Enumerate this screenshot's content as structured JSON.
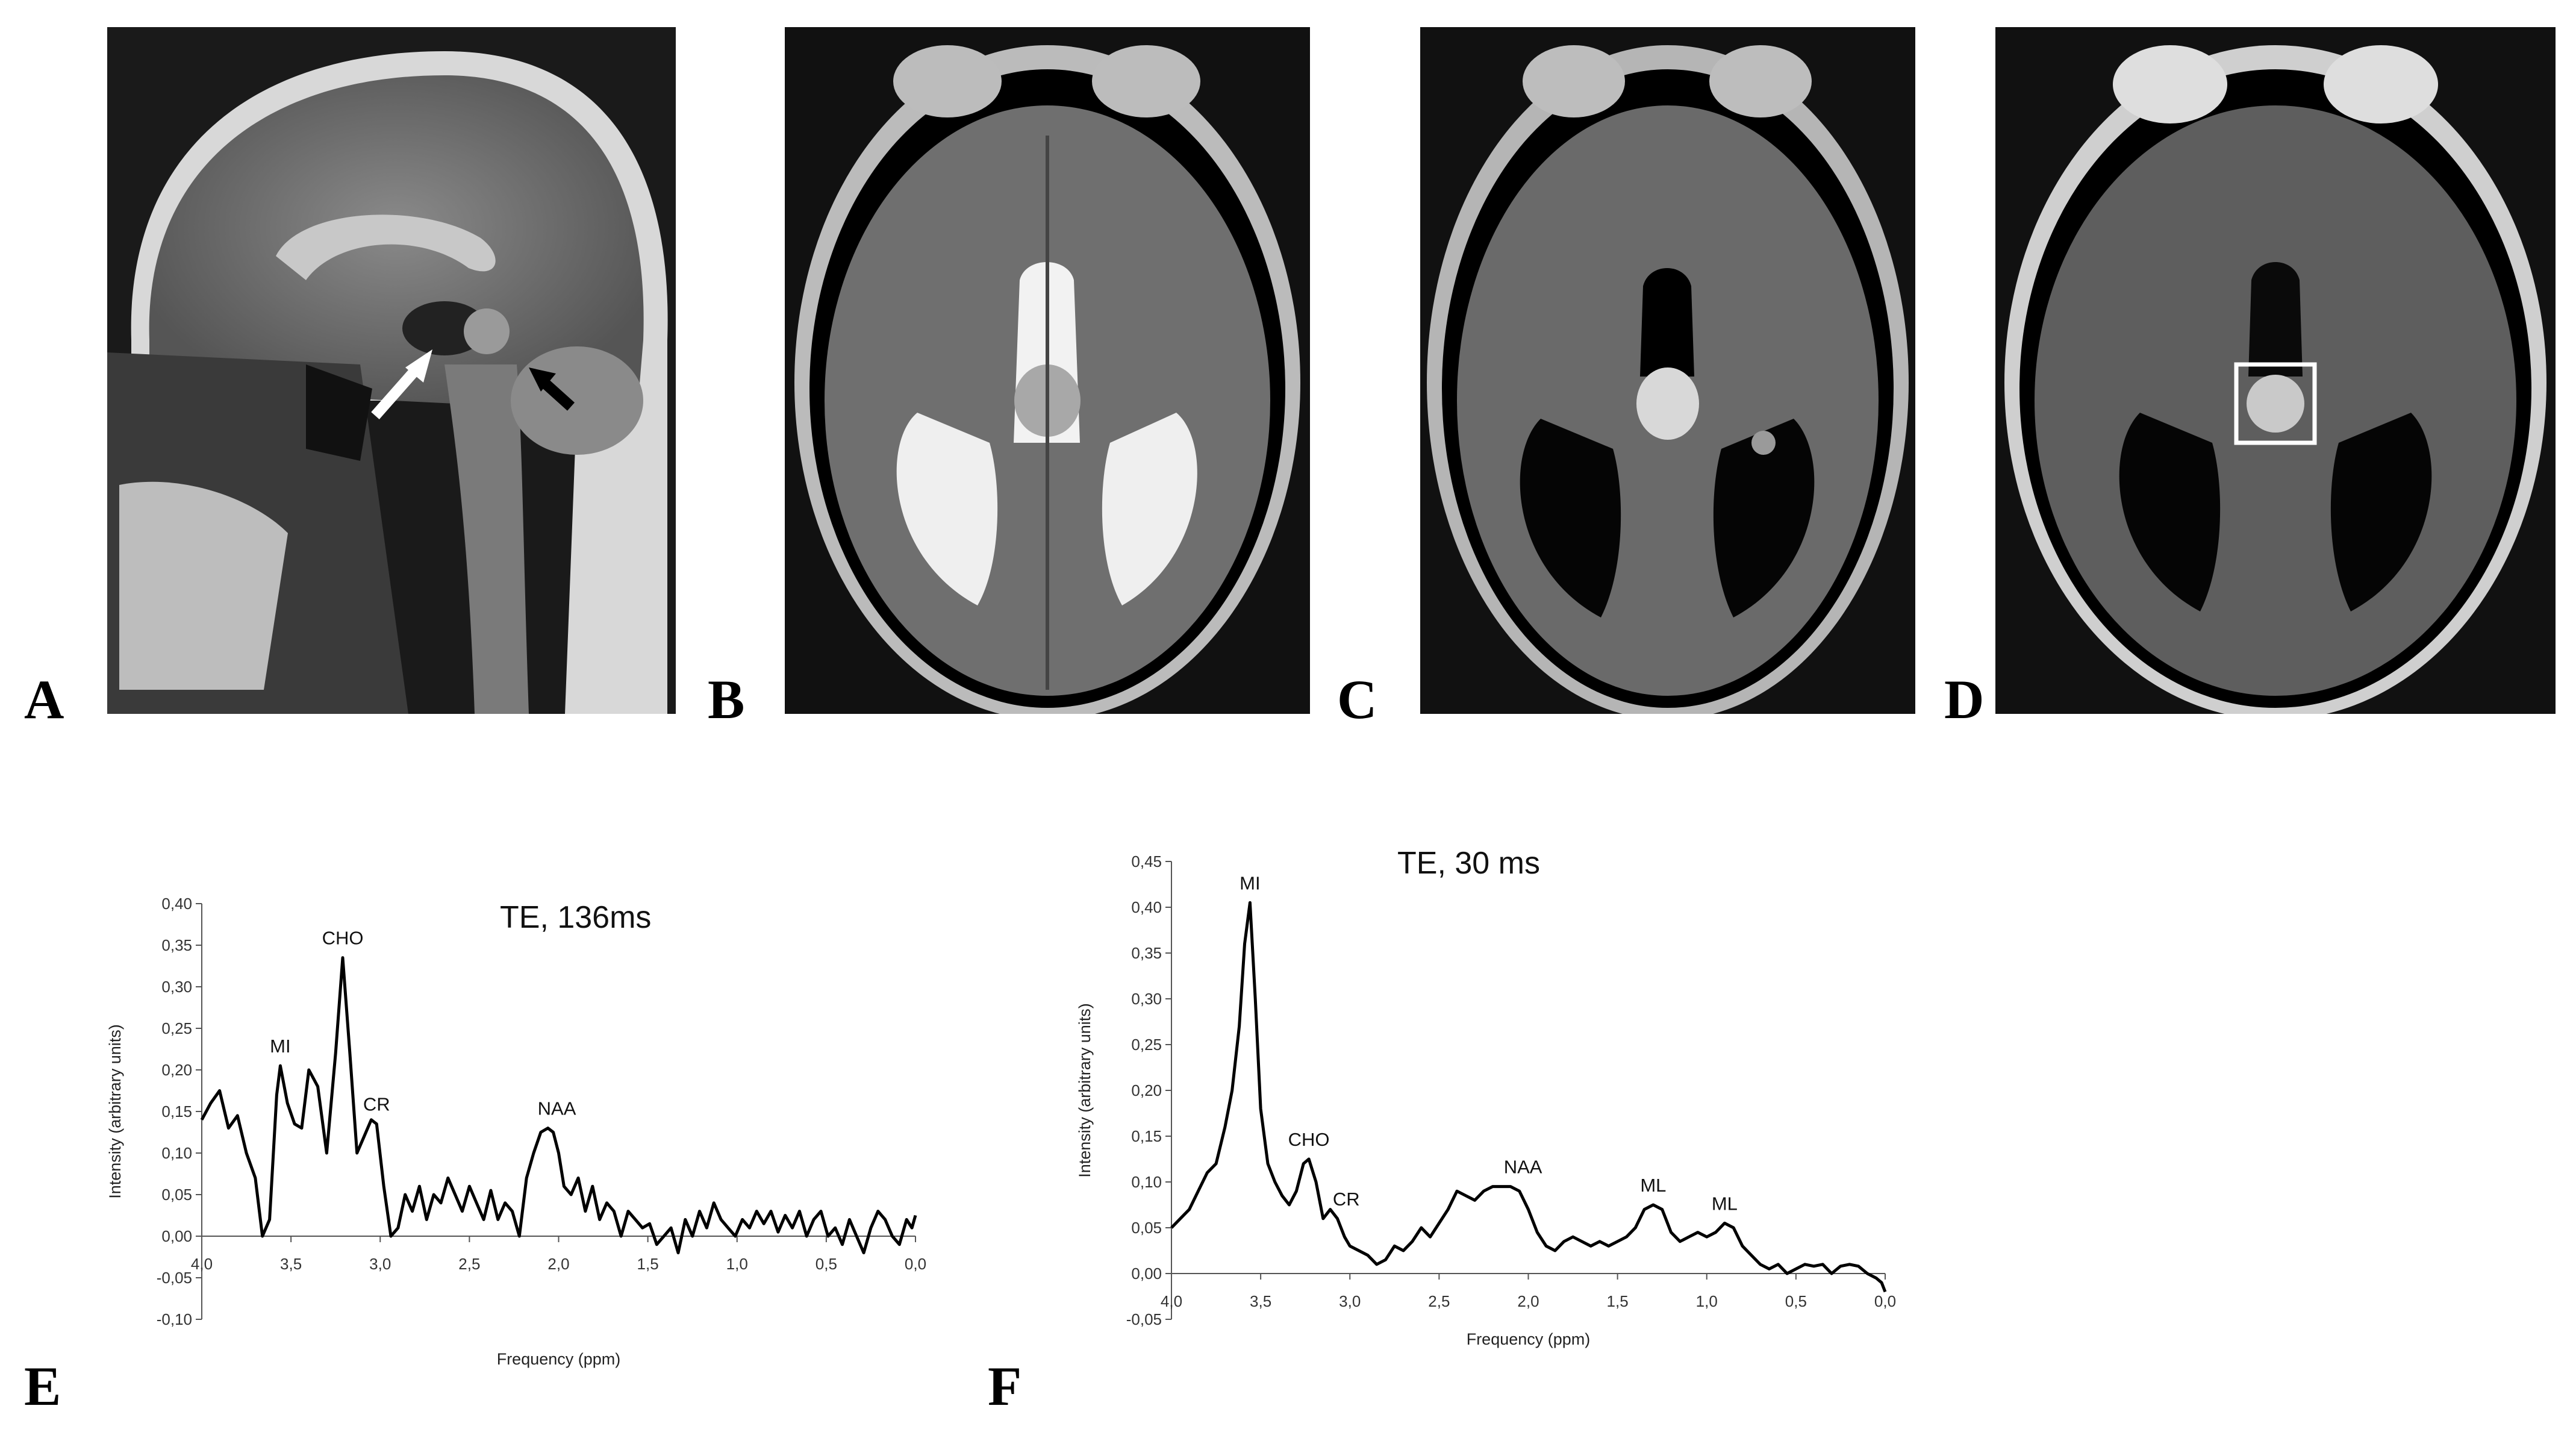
{
  "panel_labels": [
    "A",
    "B",
    "C",
    "D",
    "E",
    "F"
  ],
  "images": [
    {
      "name": "sagittal-t1-mri",
      "description_icon": "sagittal-brain-scan",
      "arrows": [
        "white-arrow",
        "black-arrow"
      ]
    },
    {
      "name": "axial-t2-mri",
      "description_icon": "axial-brain-scan"
    },
    {
      "name": "axial-flair-mri",
      "description_icon": "axial-brain-scan"
    },
    {
      "name": "axial-t1-contrast-mri",
      "description_icon": "axial-brain-scan",
      "roi_box": true
    }
  ],
  "colors": {
    "line": "#000000",
    "axis": "#555555",
    "roi": "#ffffff"
  },
  "chart_data": [
    {
      "type": "line",
      "panel": "E",
      "title": "TE, 136ms",
      "xlabel": "Frequency (ppm)",
      "ylabel": "Intensity (arbitrary units)",
      "xlim": [
        4.0,
        0.0
      ],
      "ylim": [
        -0.1,
        0.4
      ],
      "x_ticks": [
        "4,0",
        "3,5",
        "3,0",
        "2,5",
        "2,0",
        "1,5",
        "1,0",
        "0,5",
        "0,0"
      ],
      "y_ticks": [
        "-0,10",
        "-0,05",
        "0,00",
        "0,05",
        "0,10",
        "0,15",
        "0,20",
        "0,25",
        "0,30",
        "0,35",
        "0,40"
      ],
      "peaks": [
        {
          "label": "MI",
          "x": 3.56,
          "y": 0.205
        },
        {
          "label": "CHO",
          "x": 3.21,
          "y": 0.335
        },
        {
          "label": "CR",
          "x": 3.02,
          "y": 0.135
        },
        {
          "label": "NAA",
          "x": 2.01,
          "y": 0.13
        }
      ],
      "x": [
        4.0,
        3.95,
        3.9,
        3.85,
        3.8,
        3.75,
        3.7,
        3.66,
        3.62,
        3.58,
        3.56,
        3.52,
        3.48,
        3.44,
        3.4,
        3.35,
        3.3,
        3.25,
        3.21,
        3.17,
        3.13,
        3.09,
        3.05,
        3.02,
        2.98,
        2.94,
        2.9,
        2.86,
        2.82,
        2.78,
        2.74,
        2.7,
        2.66,
        2.62,
        2.58,
        2.54,
        2.5,
        2.46,
        2.42,
        2.38,
        2.34,
        2.3,
        2.26,
        2.22,
        2.18,
        2.14,
        2.1,
        2.06,
        2.03,
        2.0,
        1.97,
        1.93,
        1.89,
        1.85,
        1.81,
        1.77,
        1.73,
        1.69,
        1.65,
        1.61,
        1.57,
        1.53,
        1.49,
        1.45,
        1.41,
        1.37,
        1.33,
        1.29,
        1.25,
        1.21,
        1.17,
        1.13,
        1.09,
        1.05,
        1.01,
        0.97,
        0.93,
        0.89,
        0.85,
        0.81,
        0.77,
        0.73,
        0.69,
        0.65,
        0.61,
        0.57,
        0.53,
        0.49,
        0.45,
        0.41,
        0.37,
        0.33,
        0.29,
        0.25,
        0.21,
        0.17,
        0.13,
        0.09,
        0.05,
        0.02,
        0.0
      ],
      "y": [
        0.14,
        0.16,
        0.175,
        0.13,
        0.145,
        0.1,
        0.07,
        0.0,
        0.02,
        0.17,
        0.205,
        0.16,
        0.135,
        0.13,
        0.2,
        0.18,
        0.1,
        0.22,
        0.335,
        0.22,
        0.1,
        0.12,
        0.14,
        0.135,
        0.06,
        0.0,
        0.01,
        0.05,
        0.03,
        0.06,
        0.02,
        0.05,
        0.04,
        0.07,
        0.05,
        0.03,
        0.06,
        0.04,
        0.02,
        0.055,
        0.02,
        0.04,
        0.03,
        0.0,
        0.07,
        0.1,
        0.125,
        0.13,
        0.125,
        0.1,
        0.06,
        0.05,
        0.07,
        0.03,
        0.06,
        0.02,
        0.04,
        0.03,
        0.0,
        0.03,
        0.02,
        0.01,
        0.015,
        -0.01,
        0.0,
        0.01,
        -0.02,
        0.02,
        0.0,
        0.03,
        0.01,
        0.04,
        0.02,
        0.01,
        0.0,
        0.02,
        0.01,
        0.03,
        0.015,
        0.03,
        0.005,
        0.025,
        0.01,
        0.03,
        0.0,
        0.02,
        0.03,
        0.0,
        0.01,
        -0.01,
        0.02,
        0.0,
        -0.02,
        0.01,
        0.03,
        0.02,
        0.0,
        -0.01,
        0.02,
        0.01,
        0.025
      ]
    },
    {
      "type": "line",
      "panel": "F",
      "title": "TE, 30 ms",
      "xlabel": "Frequency (ppm)",
      "ylabel": "Intensity (arbitrary units)",
      "xlim": [
        4.0,
        0.0
      ],
      "ylim": [
        -0.05,
        0.45
      ],
      "x_ticks": [
        "4,0",
        "3,5",
        "3,0",
        "2,5",
        "2,0",
        "1,5",
        "1,0",
        "0,5",
        "0,0"
      ],
      "y_ticks": [
        "-0,05",
        "0,00",
        "0,05",
        "0,10",
        "0,15",
        "0,20",
        "0,25",
        "0,30",
        "0,35",
        "0,40",
        "0,45"
      ],
      "peaks": [
        {
          "label": "MI",
          "x": 3.56,
          "y": 0.405
        },
        {
          "label": "CHO",
          "x": 3.23,
          "y": 0.125
        },
        {
          "label": "CR",
          "x": 3.02,
          "y": 0.06
        },
        {
          "label": "NAA",
          "x": 2.03,
          "y": 0.095
        },
        {
          "label": "ML",
          "x": 1.3,
          "y": 0.075
        },
        {
          "label": "ML",
          "x": 0.9,
          "y": 0.055
        }
      ],
      "x": [
        4.0,
        3.95,
        3.9,
        3.85,
        3.8,
        3.75,
        3.7,
        3.66,
        3.62,
        3.59,
        3.56,
        3.53,
        3.5,
        3.46,
        3.42,
        3.38,
        3.34,
        3.3,
        3.26,
        3.23,
        3.19,
        3.15,
        3.11,
        3.07,
        3.03,
        3.0,
        2.95,
        2.9,
        2.85,
        2.8,
        2.75,
        2.7,
        2.65,
        2.6,
        2.55,
        2.5,
        2.45,
        2.4,
        2.35,
        2.3,
        2.25,
        2.2,
        2.15,
        2.1,
        2.05,
        2.0,
        1.95,
        1.9,
        1.85,
        1.8,
        1.75,
        1.7,
        1.65,
        1.6,
        1.55,
        1.5,
        1.45,
        1.4,
        1.35,
        1.3,
        1.25,
        1.2,
        1.15,
        1.1,
        1.05,
        1.0,
        0.95,
        0.9,
        0.85,
        0.8,
        0.75,
        0.7,
        0.65,
        0.6,
        0.55,
        0.5,
        0.45,
        0.4,
        0.35,
        0.3,
        0.25,
        0.2,
        0.15,
        0.1,
        0.05,
        0.02,
        0.0
      ],
      "y": [
        0.05,
        0.06,
        0.07,
        0.09,
        0.11,
        0.12,
        0.16,
        0.2,
        0.27,
        0.36,
        0.405,
        0.3,
        0.18,
        0.12,
        0.1,
        0.085,
        0.075,
        0.09,
        0.12,
        0.125,
        0.1,
        0.06,
        0.07,
        0.06,
        0.04,
        0.03,
        0.025,
        0.02,
        0.01,
        0.015,
        0.03,
        0.025,
        0.035,
        0.05,
        0.04,
        0.055,
        0.07,
        0.09,
        0.085,
        0.08,
        0.09,
        0.095,
        0.095,
        0.095,
        0.09,
        0.07,
        0.045,
        0.03,
        0.025,
        0.035,
        0.04,
        0.035,
        0.03,
        0.035,
        0.03,
        0.035,
        0.04,
        0.05,
        0.07,
        0.075,
        0.07,
        0.045,
        0.035,
        0.04,
        0.045,
        0.04,
        0.045,
        0.055,
        0.05,
        0.03,
        0.02,
        0.01,
        0.005,
        0.01,
        0.0,
        0.005,
        0.01,
        0.008,
        0.01,
        0.0,
        0.008,
        0.01,
        0.008,
        0.0,
        -0.005,
        -0.01,
        -0.02
      ]
    }
  ]
}
